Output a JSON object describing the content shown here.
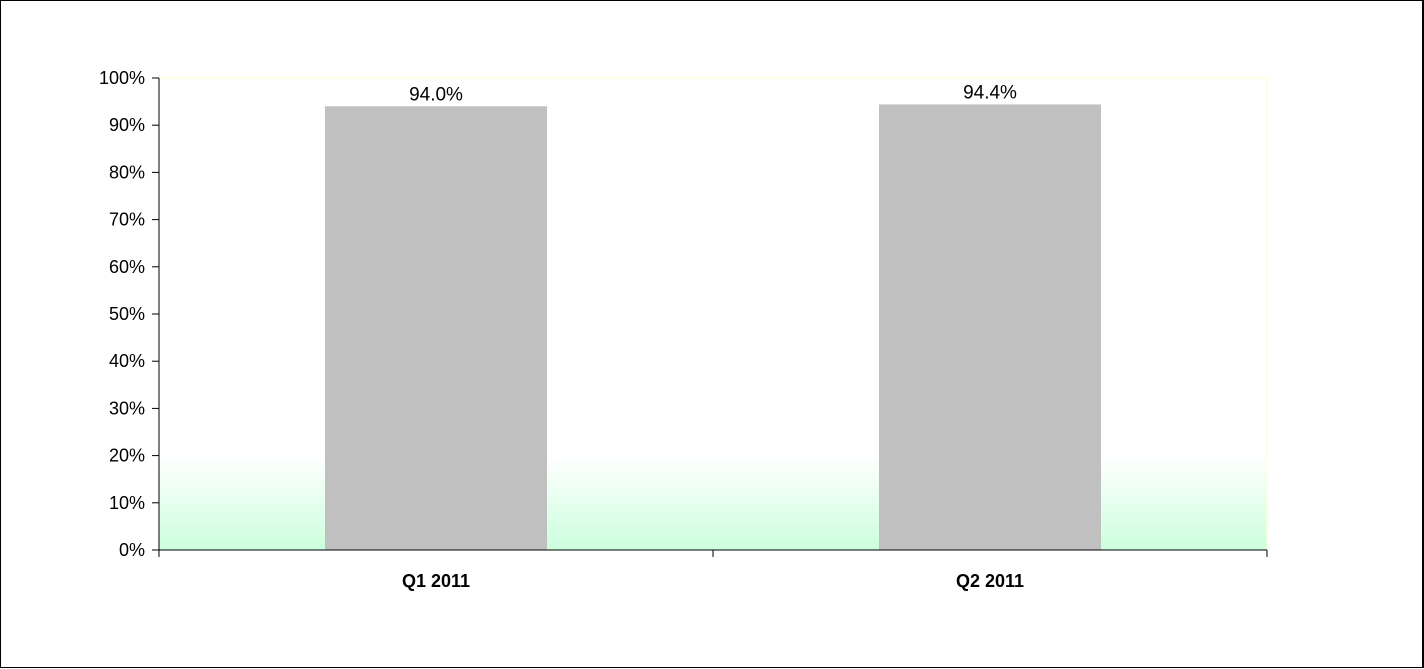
{
  "chart_data": {
    "type": "bar",
    "categories": [
      "Q1 2011",
      "Q2 2011"
    ],
    "values": [
      94.0,
      94.4
    ],
    "data_labels": [
      "94.0%",
      "94.4%"
    ],
    "yticks": [
      "0%",
      "10%",
      "20%",
      "30%",
      "40%",
      "50%",
      "60%",
      "70%",
      "80%",
      "90%",
      "100%"
    ],
    "ylim": [
      0,
      100
    ],
    "title": "",
    "xlabel": "",
    "ylabel": "",
    "grid": false,
    "legend": "none",
    "colors": {
      "bar": "#c0c0c0",
      "plot_bg_bottom": "#ccffdd",
      "plot_bg_top": "#ffffff",
      "plot_border": "#ffffcc",
      "axis": "#000000"
    }
  }
}
